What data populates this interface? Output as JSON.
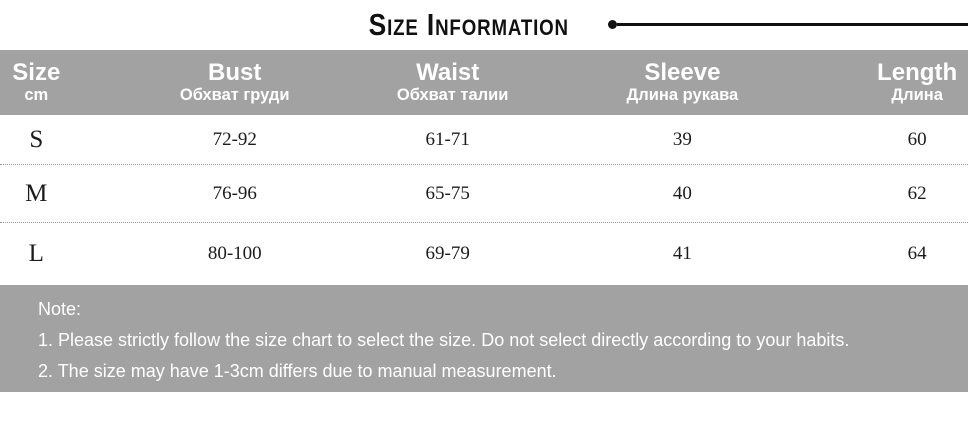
{
  "title": {
    "text": "Size Information"
  },
  "table": {
    "headers": [
      {
        "en": "Size",
        "sub": "cm"
      },
      {
        "en": "Bust",
        "sub": "Обхват груди"
      },
      {
        "en": "Waist",
        "sub": "Обхват талии"
      },
      {
        "en": "Sleeve",
        "sub": "Длина рукава"
      },
      {
        "en": "Length",
        "sub": "Длина"
      }
    ],
    "rows": [
      {
        "size": "S",
        "bust": "72-92",
        "waist": "61-71",
        "sleeve": "39",
        "length": "60"
      },
      {
        "size": "M",
        "bust": "76-96",
        "waist": "65-75",
        "sleeve": "40",
        "length": "62"
      },
      {
        "size": "L",
        "bust": "80-100",
        "waist": "69-79",
        "sleeve": "41",
        "length": "64"
      }
    ]
  },
  "note": {
    "label": "Note:",
    "lines": [
      "1. Please strictly follow the size chart to select the size. Do not select directly according to your habits.",
      "2. The size may have 1-3cm differs due to manual measurement."
    ]
  },
  "colors": {
    "header_bg": "#a2a2a2",
    "note_bg": "#a2a2a2",
    "title_ink": "#111111",
    "cell_ink": "#1c1c1c",
    "divider": "#999999"
  },
  "chart_data": {
    "type": "table",
    "title": "Size Information",
    "unit": "cm",
    "columns": [
      "Size cm",
      "Bust Обхват груди",
      "Waist Обхват талии",
      "Sleeve Длина рукава",
      "Length Длина"
    ],
    "rows": [
      [
        "S",
        "72-92",
        "61-71",
        "39",
        "60"
      ],
      [
        "M",
        "76-96",
        "65-75",
        "40",
        "62"
      ],
      [
        "L",
        "80-100",
        "69-79",
        "41",
        "64"
      ]
    ],
    "notes": [
      "1. Please strictly follow the size chart to select the size. Do not select directly according to your habits.",
      "2. The size may have 1-3cm differs due to manual measurement."
    ]
  }
}
